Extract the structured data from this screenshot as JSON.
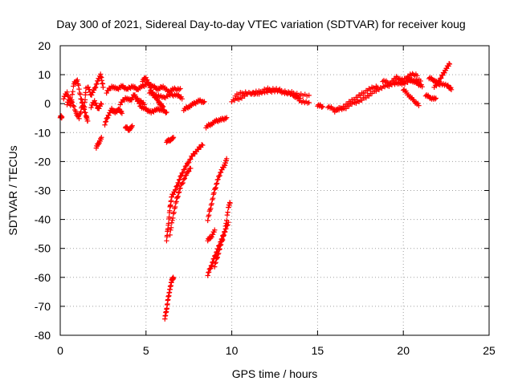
{
  "chart_data": {
    "type": "scatter",
    "title": "Day 300 of 2021, Sidereal Day-to-day VTEC variation (SDTVAR) for receiver koug",
    "xlabel": "GPS time / hours",
    "ylabel": "SDTVAR / TECUs",
    "xlim": [
      0,
      25
    ],
    "ylim": [
      -80,
      20
    ],
    "xticks": [
      0,
      5,
      10,
      15,
      20,
      25
    ],
    "yticks": [
      20,
      10,
      0,
      -10,
      -20,
      -30,
      -40,
      -50,
      -60,
      -70,
      -80
    ],
    "grid": true,
    "marker": "+",
    "color": "#ff0000",
    "series": [
      {
        "name": "SDTVAR",
        "segments": [
          [
            [
              0.0,
              -4.5
            ],
            [
              0.1,
              -4.6
            ]
          ],
          [
            [
              0.2,
              2
            ],
            [
              0.4,
              4
            ],
            [
              0.6,
              -1
            ],
            [
              0.8,
              7
            ],
            [
              1.0,
              8
            ],
            [
              1.2,
              2
            ],
            [
              1.4,
              -2
            ],
            [
              1.5,
              5
            ]
          ],
          [
            [
              0.4,
              0
            ],
            [
              0.6,
              2
            ],
            [
              0.9,
              -3
            ],
            [
              1.1,
              -5
            ],
            [
              1.3,
              0
            ],
            [
              1.5,
              -4
            ],
            [
              1.6,
              -6
            ]
          ],
          [
            [
              1.6,
              6
            ],
            [
              1.8,
              3
            ],
            [
              2.0,
              5
            ],
            [
              2.2,
              8
            ],
            [
              2.35,
              10
            ],
            [
              2.5,
              6
            ]
          ],
          [
            [
              1.8,
              -1
            ],
            [
              2.0,
              1
            ],
            [
              2.2,
              -2
            ],
            [
              2.4,
              0
            ]
          ],
          [
            [
              2.1,
              -15
            ],
            [
              2.25,
              -13.5
            ],
            [
              2.4,
              -12
            ]
          ],
          [
            [
              2.6,
              -7
            ],
            [
              2.8,
              -4
            ],
            [
              3.0,
              -2
            ],
            [
              3.2,
              -3
            ],
            [
              3.4,
              -2
            ],
            [
              3.6,
              -3
            ]
          ],
          [
            [
              2.7,
              4
            ],
            [
              3.0,
              6
            ],
            [
              3.3,
              5
            ],
            [
              3.6,
              6
            ],
            [
              3.9,
              5
            ],
            [
              4.2,
              6
            ],
            [
              4.5,
              5
            ],
            [
              4.8,
              6
            ],
            [
              5.1,
              7
            ],
            [
              5.4,
              6
            ],
            [
              5.7,
              5
            ],
            [
              6.0,
              6
            ],
            [
              6.3,
              4
            ],
            [
              6.6,
              5
            ],
            [
              7.0,
              5
            ]
          ],
          [
            [
              3.5,
              0
            ],
            [
              3.8,
              2
            ],
            [
              4.1,
              1
            ],
            [
              4.3,
              3
            ],
            [
              4.6,
              1
            ],
            [
              4.9,
              0
            ]
          ],
          [
            [
              3.8,
              -8
            ],
            [
              4.0,
              -9
            ],
            [
              4.2,
              -8
            ]
          ],
          [
            [
              4.4,
              2
            ],
            [
              4.7,
              -1
            ],
            [
              5.0,
              -2
            ],
            [
              5.3,
              -3
            ],
            [
              5.6,
              -2
            ],
            [
              5.9,
              -2
            ],
            [
              6.2,
              -3
            ]
          ],
          [
            [
              4.8,
              8
            ],
            [
              5.0,
              9
            ],
            [
              5.2,
              6
            ],
            [
              5.4,
              3
            ],
            [
              5.6,
              2
            ],
            [
              5.8,
              0
            ],
            [
              6.0,
              -1
            ]
          ],
          [
            [
              5.2,
              4
            ],
            [
              5.6,
              3
            ],
            [
              6.0,
              2
            ],
            [
              6.4,
              3
            ],
            [
              6.8,
              3
            ],
            [
              7.1,
              2
            ]
          ],
          [
            [
              6.1,
              -74
            ],
            [
              6.2,
              -71
            ],
            [
              6.3,
              -67
            ],
            [
              6.4,
              -64
            ],
            [
              6.5,
              -61
            ],
            [
              6.6,
              -60
            ]
          ],
          [
            [
              6.2,
              -47
            ],
            [
              6.3,
              -42
            ],
            [
              6.4,
              -36
            ],
            [
              6.5,
              -32
            ],
            [
              6.7,
              -30
            ],
            [
              6.9,
              -27
            ],
            [
              7.1,
              -24
            ],
            [
              7.4,
              -21
            ],
            [
              7.7,
              -18
            ],
            [
              8.0,
              -16
            ],
            [
              8.3,
              -14
            ]
          ],
          [
            [
              6.4,
              -45
            ],
            [
              6.6,
              -38
            ],
            [
              6.8,
              -33
            ],
            [
              7.0,
              -29
            ],
            [
              7.3,
              -25
            ],
            [
              7.6,
              -22
            ]
          ],
          [
            [
              6.2,
              -13
            ],
            [
              6.4,
              -12.5
            ],
            [
              6.6,
              -12
            ]
          ],
          [
            [
              7.2,
              -2
            ],
            [
              7.5,
              -1
            ],
            [
              7.8,
              0
            ],
            [
              8.1,
              1
            ],
            [
              8.4,
              0.5
            ]
          ],
          [
            [
              8.5,
              -8
            ],
            [
              8.8,
              -7
            ],
            [
              9.1,
              -6
            ],
            [
              9.4,
              -5.5
            ],
            [
              9.7,
              -5
            ]
          ],
          [
            [
              8.6,
              -59
            ],
            [
              8.8,
              -56
            ],
            [
              9.0,
              -53
            ],
            [
              9.2,
              -50
            ],
            [
              9.4,
              -47
            ],
            [
              9.6,
              -44
            ],
            [
              9.8,
              -41
            ]
          ],
          [
            [
              8.6,
              -40
            ],
            [
              8.8,
              -35
            ],
            [
              9.0,
              -30
            ],
            [
              9.2,
              -26
            ],
            [
              9.4,
              -23
            ],
            [
              9.6,
              -21
            ],
            [
              9.7,
              -19
            ]
          ],
          [
            [
              8.6,
              -47
            ],
            [
              8.8,
              -46
            ],
            [
              9.0,
              -44
            ]
          ],
          [
            [
              9.0,
              -56
            ],
            [
              9.2,
              -52
            ],
            [
              9.4,
              -48
            ],
            [
              9.6,
              -44
            ],
            [
              9.8,
              -36
            ],
            [
              9.9,
              -34
            ]
          ],
          [
            [
              10.0,
              1
            ],
            [
              10.5,
              2
            ],
            [
              11.0,
              3.5
            ],
            [
              11.5,
              4
            ],
            [
              12.0,
              4
            ],
            [
              12.5,
              4.5
            ],
            [
              13.0,
              4
            ],
            [
              13.5,
              3
            ],
            [
              14.0,
              2
            ]
          ],
          [
            [
              10.2,
              3
            ],
            [
              10.8,
              4
            ],
            [
              11.4,
              3
            ],
            [
              12.0,
              5
            ],
            [
              12.6,
              5
            ],
            [
              13.2,
              4
            ],
            [
              13.8,
              3.5
            ],
            [
              14.5,
              2.5
            ]
          ],
          [
            [
              13.6,
              3
            ],
            [
              14.0,
              1
            ],
            [
              14.5,
              0
            ]
          ],
          [
            [
              15.0,
              -0.5
            ],
            [
              15.3,
              -1
            ]
          ],
          [
            [
              15.6,
              -1
            ],
            [
              16.0,
              -2
            ],
            [
              16.5,
              -2
            ],
            [
              17.0,
              0
            ],
            [
              17.5,
              1
            ],
            [
              18.0,
              3
            ],
            [
              18.5,
              5
            ],
            [
              19.0,
              6
            ],
            [
              19.5,
              7
            ],
            [
              20.0,
              7.5
            ]
          ],
          [
            [
              16.0,
              -2.5
            ],
            [
              16.5,
              -1
            ],
            [
              17.0,
              1
            ],
            [
              17.5,
              3
            ],
            [
              18.0,
              5
            ],
            [
              18.5,
              6
            ]
          ],
          [
            [
              18.8,
              8
            ],
            [
              19.2,
              7
            ],
            [
              19.6,
              9
            ],
            [
              20.0,
              8
            ],
            [
              20.4,
              10
            ],
            [
              20.8,
              10
            ]
          ],
          [
            [
              19.5,
              7
            ],
            [
              20.0,
              7
            ],
            [
              20.5,
              8
            ],
            [
              21.0,
              8
            ]
          ],
          [
            [
              20.0,
              5
            ],
            [
              20.3,
              3
            ],
            [
              20.6,
              1
            ],
            [
              20.9,
              -0.5
            ]
          ],
          [
            [
              20.2,
              9
            ],
            [
              20.5,
              8
            ],
            [
              20.8,
              7
            ],
            [
              21.1,
              6
            ]
          ],
          [
            [
              21.3,
              3
            ],
            [
              21.6,
              2
            ],
            [
              21.9,
              1.5
            ]
          ],
          [
            [
              21.5,
              9
            ],
            [
              21.8,
              8
            ],
            [
              22.0,
              7
            ],
            [
              22.3,
              10
            ],
            [
              22.5,
              12
            ],
            [
              22.7,
              14
            ]
          ],
          [
            [
              21.8,
              6
            ],
            [
              22.2,
              7
            ],
            [
              22.6,
              6
            ],
            [
              22.8,
              5
            ]
          ]
        ]
      }
    ]
  }
}
